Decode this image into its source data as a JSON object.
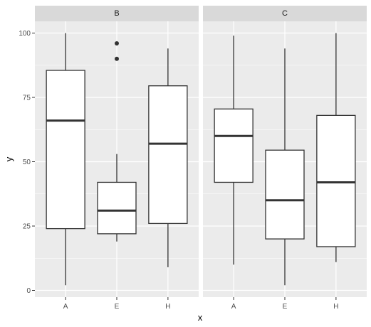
{
  "chart_data": {
    "type": "boxplot",
    "xlabel": "x",
    "ylabel": "y",
    "ylim": [
      0,
      100
    ],
    "y_ticks": [
      "0",
      "25",
      "50",
      "75",
      "100"
    ],
    "grid": true,
    "colors": {
      "panel_bg": "#ebebeb",
      "strip_bg": "#d9d9d9",
      "grid": "#ffffff",
      "box_fill": "#ffffff",
      "box_line": "#333333",
      "tick_text": "#4d4d4d"
    },
    "facets": [
      {
        "label": "B",
        "categories": [
          "A",
          "E",
          "H"
        ],
        "boxes": [
          {
            "category": "A",
            "min": 2,
            "q1": 24,
            "median": 66,
            "q3": 85.5,
            "max": 100,
            "outliers": []
          },
          {
            "category": "E",
            "min": 19,
            "q1": 22,
            "median": 31,
            "q3": 42,
            "max": 53,
            "outliers": [
              90,
              96
            ]
          },
          {
            "category": "H",
            "min": 9,
            "q1": 26,
            "median": 57,
            "q3": 79.5,
            "max": 94,
            "outliers": []
          }
        ]
      },
      {
        "label": "C",
        "categories": [
          "A",
          "E",
          "H"
        ],
        "boxes": [
          {
            "category": "A",
            "min": 10,
            "q1": 42,
            "median": 60,
            "q3": 70.5,
            "max": 99,
            "outliers": []
          },
          {
            "category": "E",
            "min": 2,
            "q1": 20,
            "median": 35,
            "q3": 54.5,
            "max": 94,
            "outliers": []
          },
          {
            "category": "H",
            "min": 11,
            "q1": 17,
            "median": 42,
            "q3": 68,
            "max": 100,
            "outliers": []
          }
        ]
      }
    ]
  }
}
